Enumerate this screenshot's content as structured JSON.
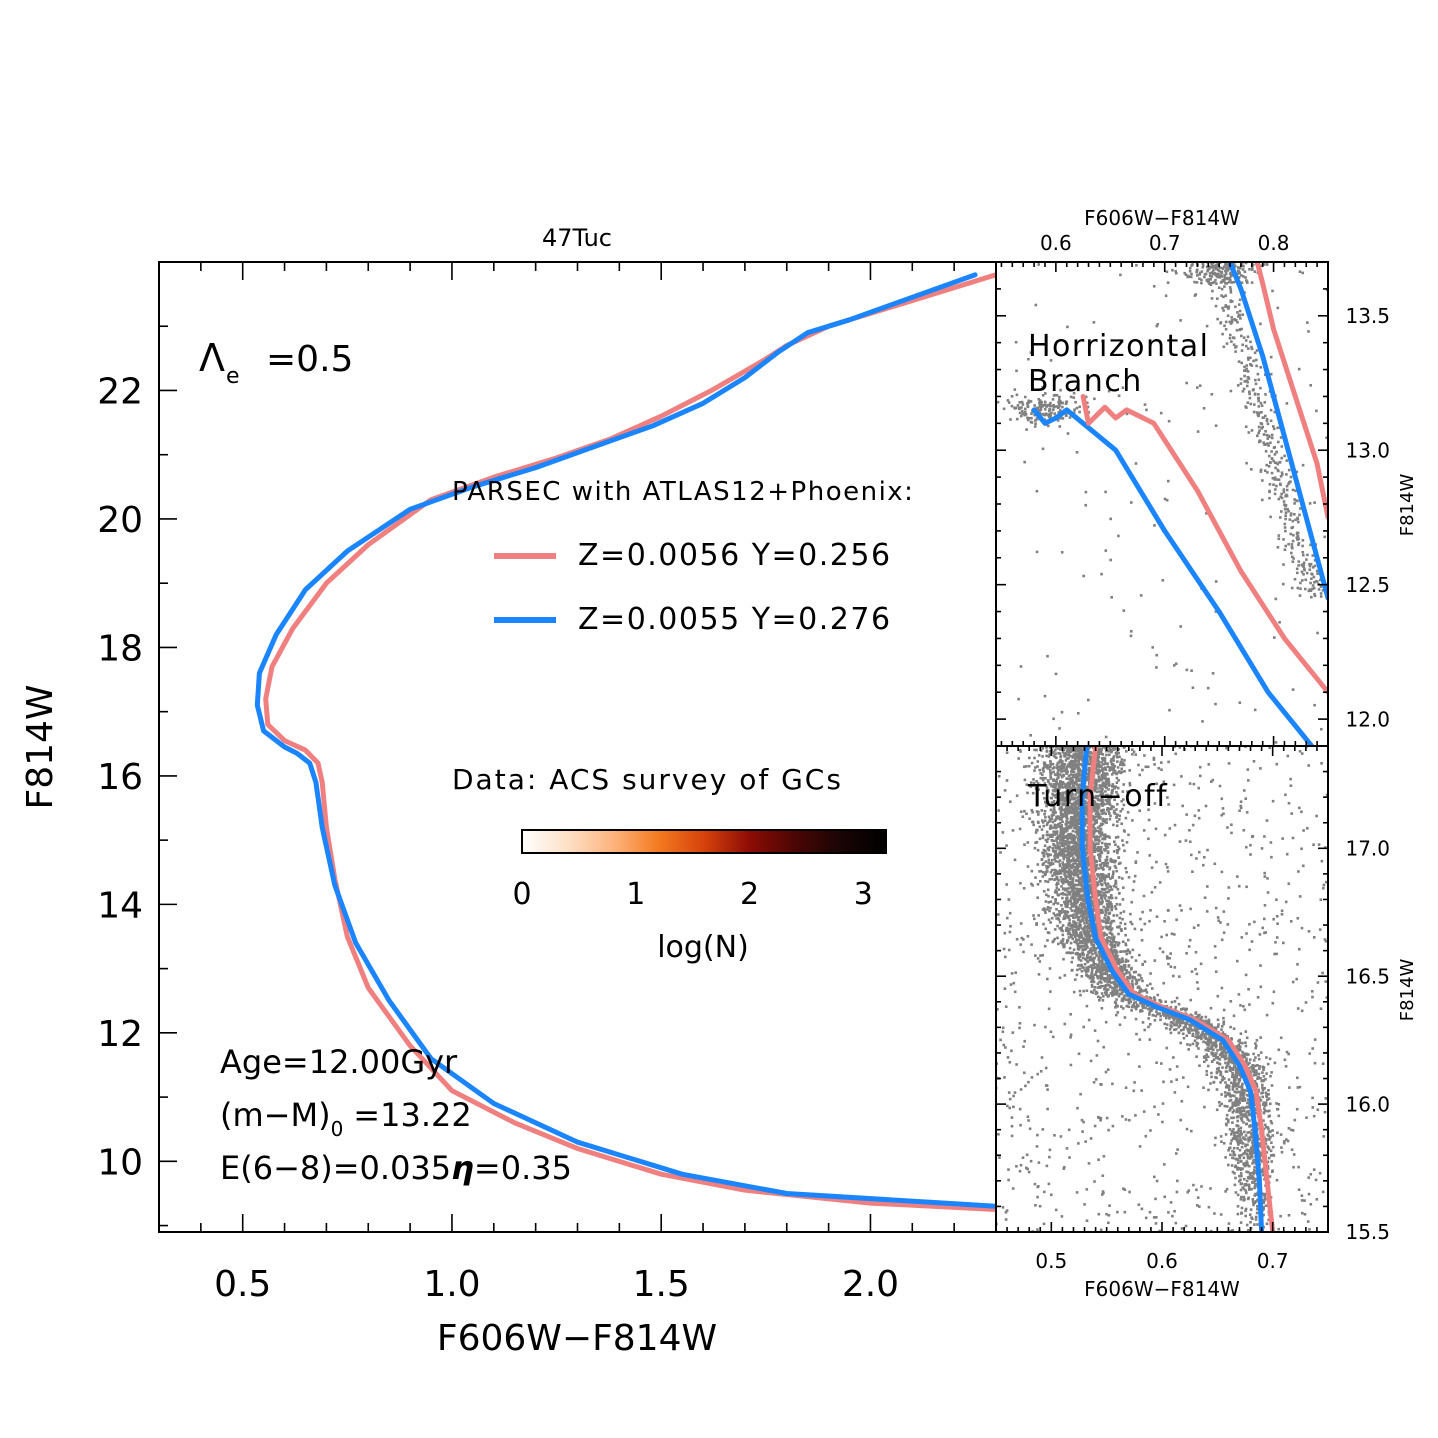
{
  "chart_data": [
    {
      "id": "main",
      "type": "heatmap",
      "title": "47Tuc",
      "xlabel": "F606W−F814W",
      "ylabel": "F814W",
      "xlim": [
        0.3,
        2.3
      ],
      "ylim": [
        24.0,
        8.9
      ],
      "y_inverted": true,
      "xticks": [
        "0.5",
        "1.0",
        "1.5",
        "2.0"
      ],
      "yticks": [
        "10",
        "12",
        "14",
        "16",
        "18",
        "20",
        "22"
      ],
      "lambda_label": "Λ",
      "lambda_sub": "e",
      "lambda_value": "=0.5",
      "legend_title": "PARSEC with ATLAS12+Phoenix:",
      "data_label": "Data: ACS survey of GCs",
      "colorbar": {
        "label": "log(N)",
        "min": 0,
        "max": 3.2,
        "ticks": [
          "0",
          "1",
          "2",
          "3"
        ],
        "colormap": [
          "#ffffff",
          "#fde1c7",
          "#fdb47e",
          "#f47a1f",
          "#d5420c",
          "#8e0c05",
          "#4a0604",
          "#1a0505",
          "#000000"
        ]
      },
      "params": {
        "age": "Age=12.00Gyr",
        "dm_prefix": "(m−M)",
        "dm_sub": "0",
        "dm_value": "=13.22",
        "ext_eta": "E(6−8)=0.035",
        "eta_symbol": "η",
        "eta_value": "=0.35"
      },
      "series": [
        {
          "name": "Z=0.0056 Y=0.256",
          "color": "#f08080",
          "x": [
            2.3,
            2.0,
            1.9,
            1.8,
            1.74,
            1.62,
            1.5,
            1.38,
            1.25,
            1.1,
            0.95,
            0.8,
            0.7,
            0.62,
            0.57,
            0.555,
            0.56,
            0.6,
            0.65,
            0.68,
            0.69,
            0.7,
            0.72,
            0.75,
            0.8,
            0.9,
            1.0,
            1.15,
            1.3,
            1.5,
            1.7,
            2.0,
            2.3
          ],
          "y": [
            23.8,
            23.2,
            23.0,
            22.7,
            22.45,
            22.0,
            21.6,
            21.25,
            20.95,
            20.65,
            20.3,
            19.6,
            19.0,
            18.3,
            17.7,
            17.2,
            16.8,
            16.55,
            16.4,
            16.2,
            15.9,
            15.2,
            14.4,
            13.5,
            12.7,
            11.8,
            11.1,
            10.6,
            10.2,
            9.8,
            9.55,
            9.35,
            9.25
          ]
        },
        {
          "name": "Z=0.0055 Y=0.276",
          "color": "#1a85ff",
          "x": [
            2.25,
            1.95,
            1.85,
            1.78,
            1.7,
            1.6,
            1.48,
            1.35,
            1.2,
            1.05,
            0.9,
            0.75,
            0.65,
            0.58,
            0.54,
            0.535,
            0.55,
            0.6,
            0.63,
            0.66,
            0.675,
            0.69,
            0.72,
            0.77,
            0.85,
            0.95,
            1.1,
            1.3,
            1.55,
            1.8,
            2.3
          ],
          "y": [
            23.8,
            23.1,
            22.9,
            22.6,
            22.2,
            21.8,
            21.45,
            21.15,
            20.8,
            20.5,
            20.15,
            19.5,
            18.9,
            18.2,
            17.6,
            17.1,
            16.7,
            16.45,
            16.35,
            16.2,
            15.9,
            15.2,
            14.3,
            13.4,
            12.5,
            11.6,
            10.9,
            10.3,
            9.8,
            9.5,
            9.3
          ]
        }
      ]
    },
    {
      "id": "hb",
      "type": "scatter",
      "title": "Horrizontal Branch",
      "label_line1": "Horrizontal",
      "label_line2": "Branch",
      "xlabel": "F606W−F814W",
      "ylabel": "F814W",
      "xlim": [
        0.545,
        0.85
      ],
      "ylim": [
        13.7,
        11.9
      ],
      "xticks": [
        "0.6",
        "0.7",
        "0.8"
      ],
      "yticks": [
        "12.0",
        "12.5",
        "13.0",
        "13.5"
      ],
      "series": [
        {
          "name": "blue-upper",
          "color": "#1a85ff",
          "x": [
            0.835,
            0.795,
            0.75,
            0.7,
            0.655,
            0.625,
            0.61,
            0.6,
            0.59,
            0.58
          ],
          "y": [
            11.9,
            12.1,
            12.4,
            12.7,
            13.0,
            13.1,
            13.15,
            13.12,
            13.1,
            13.15
          ]
        },
        {
          "name": "red-upper",
          "color": "#f08080",
          "x": [
            0.85,
            0.81,
            0.77,
            0.73,
            0.69,
            0.665,
            0.655,
            0.645,
            0.63,
            0.625
          ],
          "y": [
            12.1,
            12.3,
            12.55,
            12.85,
            13.1,
            13.15,
            13.12,
            13.16,
            13.1,
            13.2
          ]
        },
        {
          "name": "blue-rgb",
          "color": "#1a85ff",
          "x": [
            0.85,
            0.83,
            0.81,
            0.79,
            0.77,
            0.76
          ],
          "y": [
            12.45,
            12.75,
            13.05,
            13.35,
            13.6,
            13.7
          ]
        },
        {
          "name": "red-rgb",
          "color": "#f08080",
          "x": [
            0.85,
            0.84,
            0.82,
            0.8,
            0.79,
            0.785
          ],
          "y": [
            12.75,
            12.95,
            13.2,
            13.45,
            13.62,
            13.7
          ]
        }
      ]
    },
    {
      "id": "to",
      "type": "scatter",
      "title": "Turn−off",
      "xlabel": "F606W−F814W",
      "ylabel": "F814W",
      "xlim": [
        0.45,
        0.75
      ],
      "ylim": [
        17.4,
        15.5
      ],
      "xticks": [
        "0.5",
        "0.6",
        "0.7"
      ],
      "yticks": [
        "15.5",
        "16.0",
        "16.5",
        "17.0"
      ],
      "series": [
        {
          "name": "red",
          "color": "#f08080",
          "x": [
            0.7,
            0.695,
            0.69,
            0.685,
            0.675,
            0.66,
            0.63,
            0.6,
            0.575,
            0.56,
            0.545,
            0.54,
            0.535,
            0.535,
            0.54
          ],
          "y": [
            15.5,
            15.7,
            15.9,
            16.05,
            16.15,
            16.25,
            16.33,
            16.38,
            16.43,
            16.52,
            16.65,
            16.8,
            17.0,
            17.2,
            17.4
          ]
        },
        {
          "name": "blue",
          "color": "#1a85ff",
          "x": [
            0.69,
            0.688,
            0.684,
            0.68,
            0.67,
            0.655,
            0.625,
            0.595,
            0.57,
            0.555,
            0.54,
            0.533,
            0.528,
            0.528,
            0.532
          ],
          "y": [
            15.5,
            15.7,
            15.9,
            16.05,
            16.15,
            16.25,
            16.33,
            16.38,
            16.43,
            16.52,
            16.65,
            16.8,
            17.0,
            17.2,
            17.4
          ]
        }
      ]
    }
  ]
}
